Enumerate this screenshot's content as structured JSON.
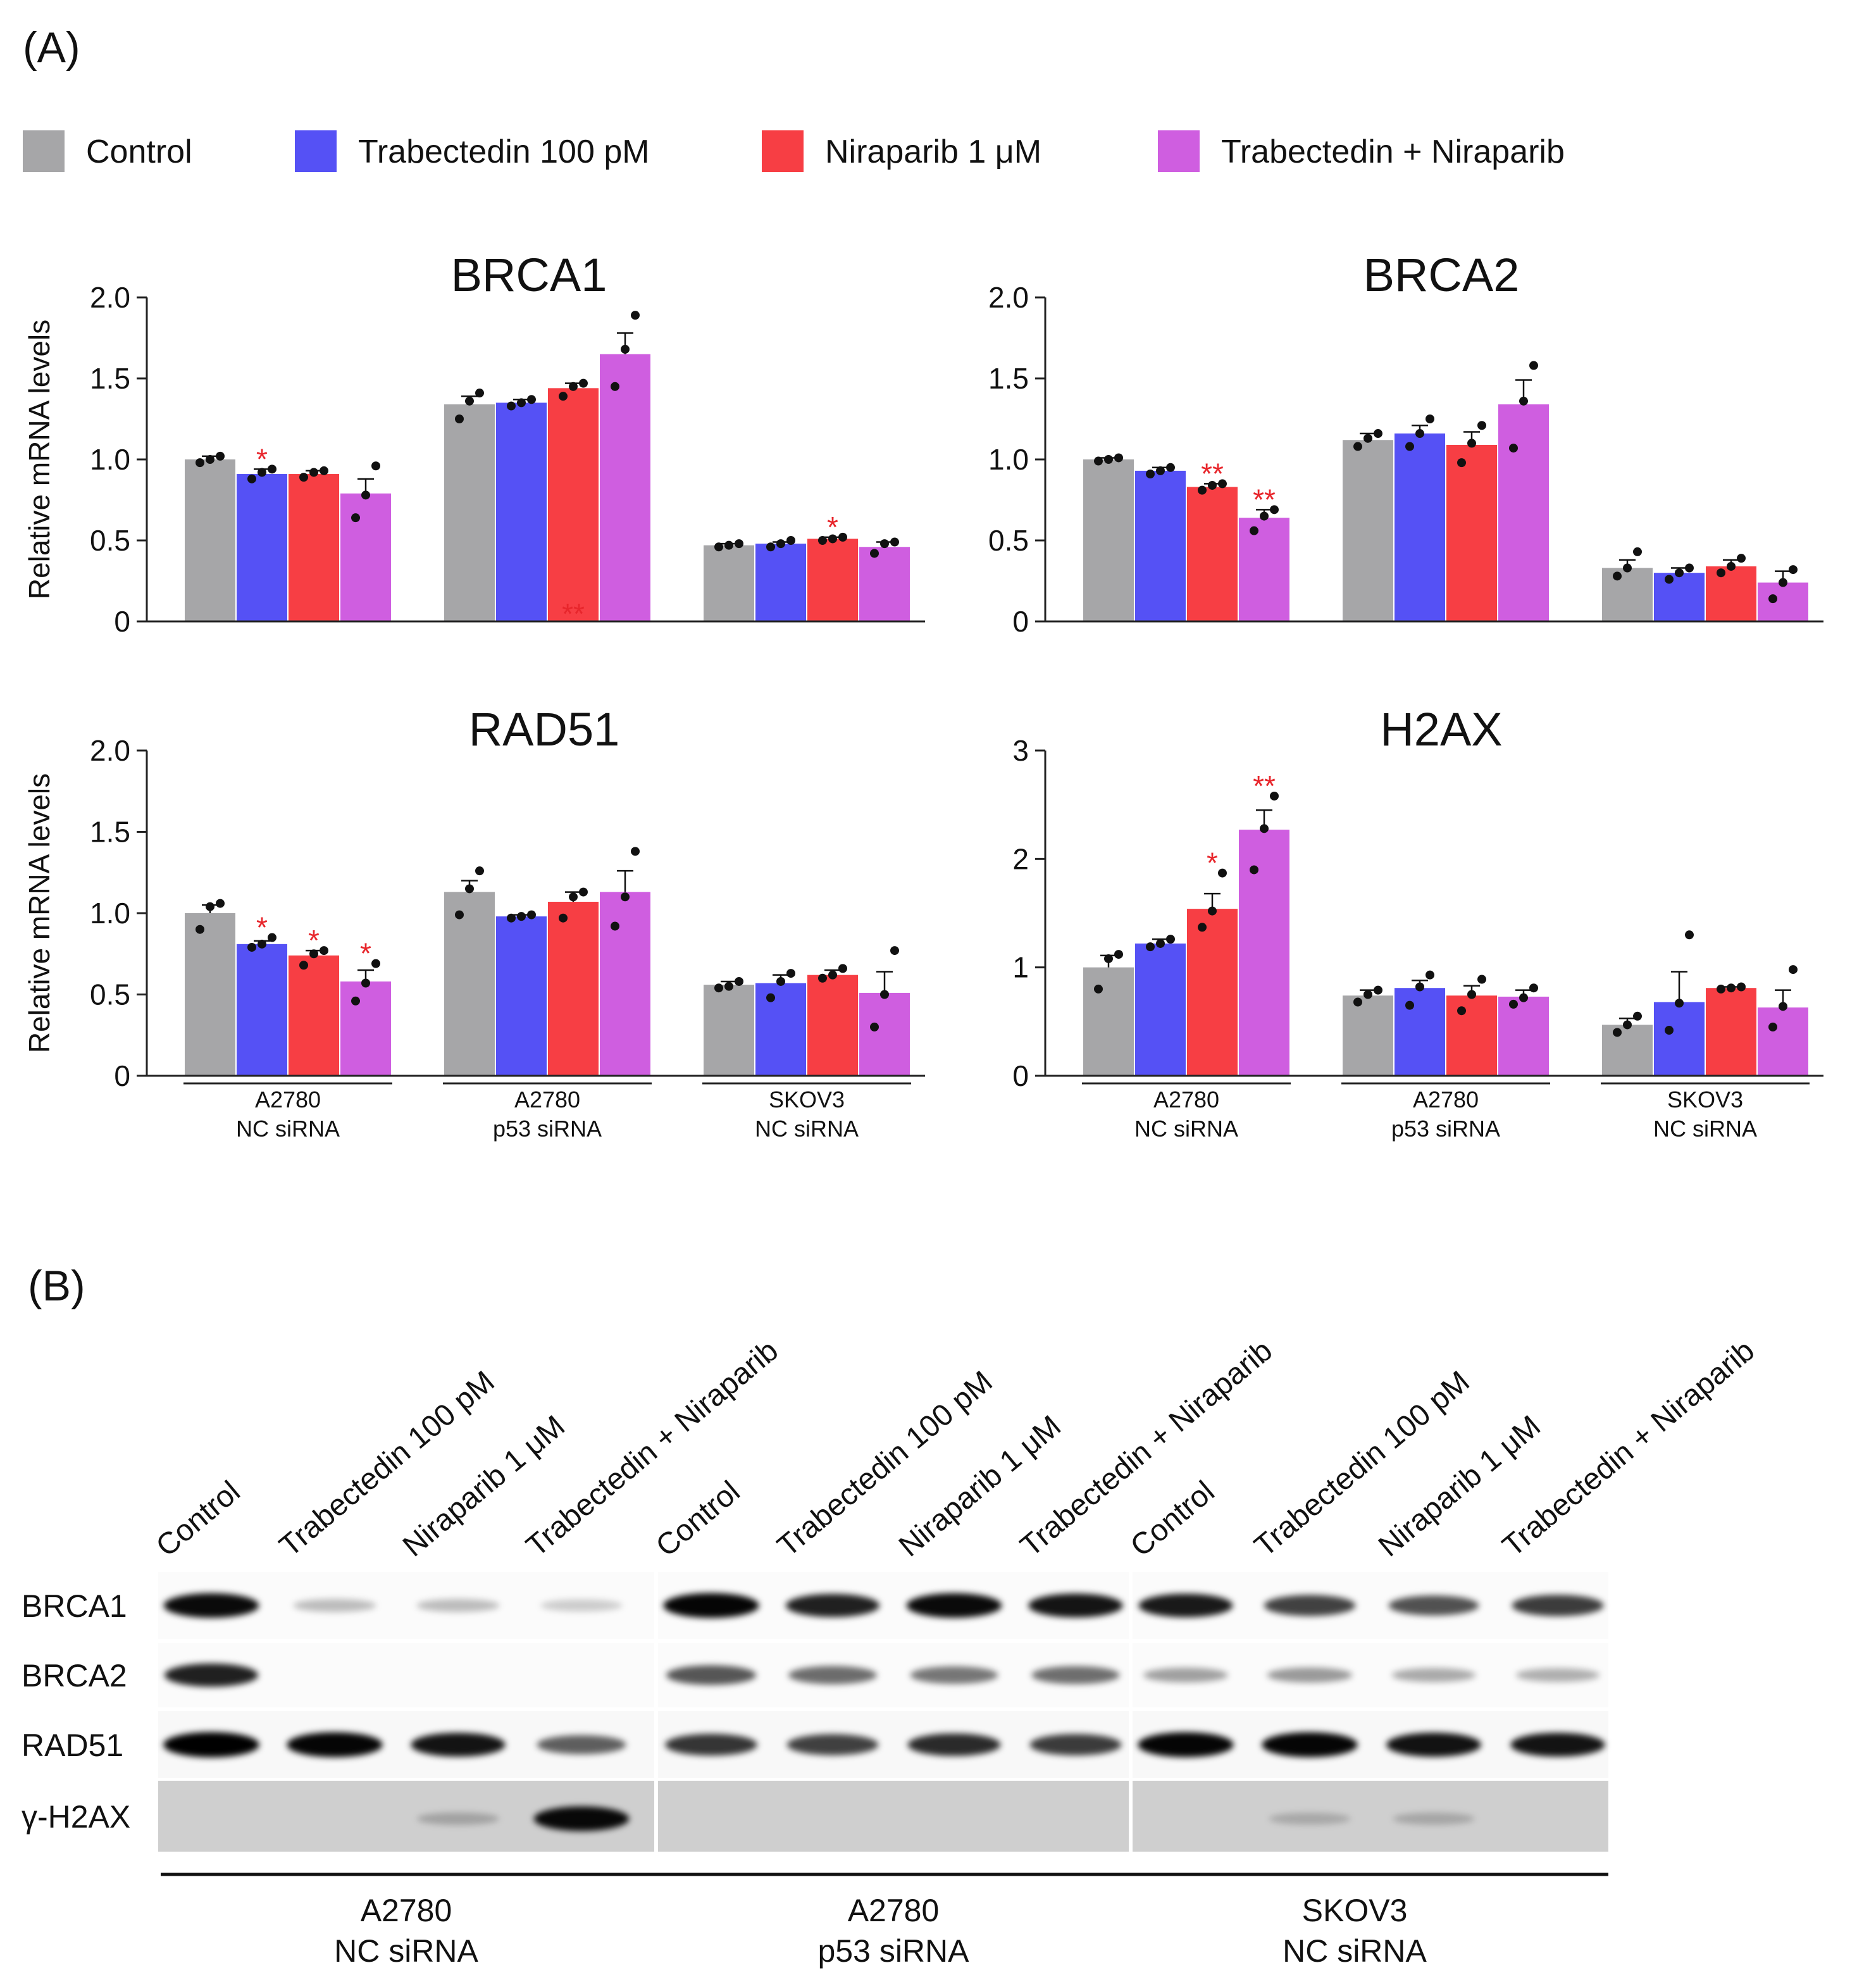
{
  "panel_a_label": "(A)",
  "panel_b_label": "(B)",
  "legend": [
    {
      "label": "Control",
      "color": "#a6a6a8"
    },
    {
      "label": "Trabectedin 100 pM",
      "color": "#5551f5"
    },
    {
      "label": "Niraparib 1 μM",
      "color": "#f73e44"
    },
    {
      "label": "Trabectedin + Niraparib",
      "color": "#cf5ee0"
    }
  ],
  "ylabel": "Relative mRNA levels",
  "group_labels": [
    [
      "A2780",
      "NC siRNA"
    ],
    [
      "A2780",
      "p53 siRNA"
    ],
    [
      "SKOV3",
      "NC siRNA"
    ]
  ],
  "sig_color": "#e8262c",
  "chart_data": [
    {
      "type": "bar",
      "title": "BRCA1",
      "ylim": [
        0,
        2.0
      ],
      "yticks": [
        "0",
        "0.5",
        "1.0",
        "1.5",
        "2.0"
      ],
      "ytick_values": [
        0,
        0.5,
        1.0,
        1.5,
        2.0
      ],
      "categories": [
        "A2780 NC siRNA",
        "A2780 p53 siRNA",
        "SKOV3 NC siRNA"
      ],
      "series": [
        {
          "name": "Control",
          "values": [
            1.0,
            1.34,
            0.47
          ],
          "errors": [
            0.02,
            0.05,
            0.01
          ],
          "points": [
            [
              0.98,
              1.0,
              1.02
            ],
            [
              1.25,
              1.36,
              1.41
            ],
            [
              0.46,
              0.47,
              0.48
            ]
          ],
          "sig": [
            "",
            "",
            ""
          ]
        },
        {
          "name": "Trabectedin 100 pM",
          "values": [
            0.91,
            1.35,
            0.48
          ],
          "errors": [
            0.03,
            0.02,
            0.01
          ],
          "points": [
            [
              0.88,
              0.92,
              0.94
            ],
            [
              1.33,
              1.35,
              1.37
            ],
            [
              0.46,
              0.48,
              0.5
            ]
          ],
          "sig": [
            "*",
            "",
            ""
          ]
        },
        {
          "name": "Niraparib 1 μM",
          "values": [
            0.91,
            1.44,
            0.51
          ],
          "errors": [
            0.02,
            0.03,
            0.01
          ],
          "points": [
            [
              0.89,
              0.92,
              0.93
            ],
            [
              1.39,
              1.45,
              1.47
            ],
            [
              0.5,
              0.51,
              0.52
            ]
          ],
          "sig": [
            "",
            "**",
            "*"
          ]
        },
        {
          "name": "Trabectedin + Niraparib",
          "values": [
            0.79,
            1.65,
            0.46
          ],
          "errors": [
            0.09,
            0.13,
            0.03
          ],
          "points": [
            [
              0.64,
              0.78,
              0.96
            ],
            [
              1.45,
              1.68,
              1.89
            ],
            [
              0.42,
              0.48,
              0.49
            ]
          ],
          "sig": [
            "",
            "",
            ""
          ]
        }
      ]
    },
    {
      "type": "bar",
      "title": "BRCA2",
      "ylim": [
        0,
        2.0
      ],
      "yticks": [
        "0",
        "0.5",
        "1.0",
        "1.5",
        "2.0"
      ],
      "ytick_values": [
        0,
        0.5,
        1.0,
        1.5,
        2.0
      ],
      "categories": [
        "A2780 NC siRNA",
        "A2780 p53 siRNA",
        "SKOV3 NC siRNA"
      ],
      "series": [
        {
          "name": "Control",
          "values": [
            1.0,
            1.12,
            0.33
          ],
          "errors": [
            0.01,
            0.04,
            0.05
          ],
          "points": [
            [
              0.99,
              1.0,
              1.01
            ],
            [
              1.08,
              1.13,
              1.16
            ],
            [
              0.28,
              0.33,
              0.43
            ]
          ],
          "sig": [
            "",
            "",
            ""
          ]
        },
        {
          "name": "Trabectedin 100 pM",
          "values": [
            0.93,
            1.16,
            0.3
          ],
          "errors": [
            0.02,
            0.05,
            0.03
          ],
          "points": [
            [
              0.91,
              0.93,
              0.95
            ],
            [
              1.08,
              1.16,
              1.25
            ],
            [
              0.26,
              0.3,
              0.33
            ]
          ],
          "sig": [
            "",
            "",
            ""
          ]
        },
        {
          "name": "Niraparib 1 μM",
          "values": [
            0.83,
            1.09,
            0.34
          ],
          "errors": [
            0.02,
            0.08,
            0.04
          ],
          "points": [
            [
              0.81,
              0.84,
              0.85
            ],
            [
              0.98,
              1.1,
              1.21
            ],
            [
              0.3,
              0.34,
              0.39
            ]
          ],
          "sig": [
            "**",
            "",
            ""
          ]
        },
        {
          "name": "Trabectedin + Niraparib",
          "values": [
            0.64,
            1.34,
            0.24
          ],
          "errors": [
            0.05,
            0.15,
            0.07
          ],
          "points": [
            [
              0.56,
              0.65,
              0.69
            ],
            [
              1.07,
              1.36,
              1.58
            ],
            [
              0.14,
              0.24,
              0.32
            ]
          ],
          "sig": [
            "**",
            "",
            ""
          ]
        }
      ]
    },
    {
      "type": "bar",
      "title": "RAD51",
      "ylim": [
        0,
        2.0
      ],
      "yticks": [
        "0",
        "0.5",
        "1.0",
        "1.5",
        "2.0"
      ],
      "ytick_values": [
        0,
        0.5,
        1.0,
        1.5,
        2.0
      ],
      "categories": [
        "A2780 NC siRNA",
        "A2780 p53 siRNA",
        "SKOV3 NC siRNA"
      ],
      "series": [
        {
          "name": "Control",
          "values": [
            1.0,
            1.13,
            0.56
          ],
          "errors": [
            0.05,
            0.07,
            0.02
          ],
          "points": [
            [
              0.9,
              1.04,
              1.06
            ],
            [
              0.99,
              1.15,
              1.26
            ],
            [
              0.54,
              0.55,
              0.58
            ]
          ],
          "sig": [
            "",
            "",
            ""
          ]
        },
        {
          "name": "Trabectedin 100 pM",
          "values": [
            0.81,
            0.98,
            0.57
          ],
          "errors": [
            0.02,
            0.01,
            0.05
          ],
          "points": [
            [
              0.79,
              0.81,
              0.85
            ],
            [
              0.97,
              0.98,
              0.99
            ],
            [
              0.48,
              0.58,
              0.63
            ]
          ],
          "sig": [
            "*",
            "",
            ""
          ]
        },
        {
          "name": "Niraparib 1 μM",
          "values": [
            0.74,
            1.07,
            0.62
          ],
          "errors": [
            0.03,
            0.06,
            0.03
          ],
          "points": [
            [
              0.68,
              0.75,
              0.77
            ],
            [
              0.97,
              1.1,
              1.13
            ],
            [
              0.6,
              0.62,
              0.66
            ]
          ],
          "sig": [
            "*",
            "",
            ""
          ]
        },
        {
          "name": "Trabectedin + Niraparib",
          "values": [
            0.58,
            1.13,
            0.51
          ],
          "errors": [
            0.07,
            0.13,
            0.13
          ],
          "points": [
            [
              0.46,
              0.57,
              0.69
            ],
            [
              0.92,
              1.1,
              1.38
            ],
            [
              0.3,
              0.5,
              0.77
            ]
          ],
          "sig": [
            "*",
            "",
            ""
          ]
        }
      ]
    },
    {
      "type": "bar",
      "title": "H2AX",
      "ylim": [
        0,
        3
      ],
      "yticks": [
        "0",
        "1",
        "2",
        "3"
      ],
      "ytick_values": [
        0,
        1,
        2,
        3
      ],
      "categories": [
        "A2780 NC siRNA",
        "A2780 p53 siRNA",
        "SKOV3 NC siRNA"
      ],
      "series": [
        {
          "name": "Control",
          "values": [
            1.0,
            0.74,
            0.47
          ],
          "errors": [
            0.11,
            0.05,
            0.06
          ],
          "points": [
            [
              0.8,
              1.08,
              1.12
            ],
            [
              0.68,
              0.75,
              0.79
            ],
            [
              0.4,
              0.47,
              0.55
            ]
          ],
          "sig": [
            "",
            "",
            ""
          ]
        },
        {
          "name": "Trabectedin 100 pM",
          "values": [
            1.22,
            0.81,
            0.68
          ],
          "errors": [
            0.04,
            0.07,
            0.28
          ],
          "points": [
            [
              1.19,
              1.22,
              1.26
            ],
            [
              0.65,
              0.82,
              0.93
            ],
            [
              0.42,
              0.67,
              1.3
            ]
          ],
          "sig": [
            "",
            "",
            ""
          ]
        },
        {
          "name": "Niraparib 1 μM",
          "values": [
            1.54,
            0.74,
            0.81
          ],
          "errors": [
            0.14,
            0.09,
            0.01
          ],
          "points": [
            [
              1.37,
              1.52,
              1.87
            ],
            [
              0.6,
              0.75,
              0.89
            ],
            [
              0.8,
              0.81,
              0.82
            ]
          ],
          "sig": [
            "*",
            "",
            ""
          ]
        },
        {
          "name": "Trabectedin + Niraparib",
          "values": [
            2.27,
            0.73,
            0.63
          ],
          "errors": [
            0.18,
            0.06,
            0.16
          ],
          "points": [
            [
              1.9,
              2.28,
              2.58
            ],
            [
              0.66,
              0.72,
              0.81
            ],
            [
              0.45,
              0.64,
              0.98
            ]
          ],
          "sig": [
            "**",
            "",
            ""
          ]
        }
      ]
    }
  ],
  "blot": {
    "lanes": [
      "Control",
      "Trabectedin 100 pM",
      "Niraparib 1 μM",
      "Trabectedin + Niraparib",
      "Control",
      "Trabectedin 100 pM",
      "Niraparib 1 μM",
      "Trabectedin + Niraparib",
      "Control",
      "Trabectedin 100 pM",
      "Niraparib 1 μM",
      "Trabectedin + Niraparib"
    ],
    "rows": [
      {
        "label": "BRCA1",
        "background": "#fbfbfb",
        "intensity": [
          0.95,
          0.12,
          0.12,
          0.05,
          0.98,
          0.85,
          0.95,
          0.9,
          0.88,
          0.7,
          0.62,
          0.72
        ]
      },
      {
        "label": "BRCA2",
        "background": "#fbfbfb",
        "intensity": [
          0.85,
          0.0,
          0.0,
          0.0,
          0.6,
          0.5,
          0.45,
          0.48,
          0.25,
          0.28,
          0.2,
          0.18
        ]
      },
      {
        "label": "RAD51",
        "background": "#f8f8f8",
        "intensity": [
          1.0,
          0.98,
          0.9,
          0.55,
          0.75,
          0.7,
          0.8,
          0.72,
          0.98,
          0.98,
          0.92,
          0.9
        ]
      },
      {
        "label": "γ-H2AX",
        "background": "#cfcfcf",
        "intensity": [
          0.0,
          0.0,
          0.08,
          0.95,
          0.0,
          0.0,
          0.0,
          0.0,
          0.0,
          0.05,
          0.06,
          0.0
        ]
      }
    ],
    "group_labels": [
      [
        "A2780",
        "NC siRNA"
      ],
      [
        "A2780",
        "p53 siRNA"
      ],
      [
        "SKOV3",
        "NC siRNA"
      ]
    ]
  }
}
